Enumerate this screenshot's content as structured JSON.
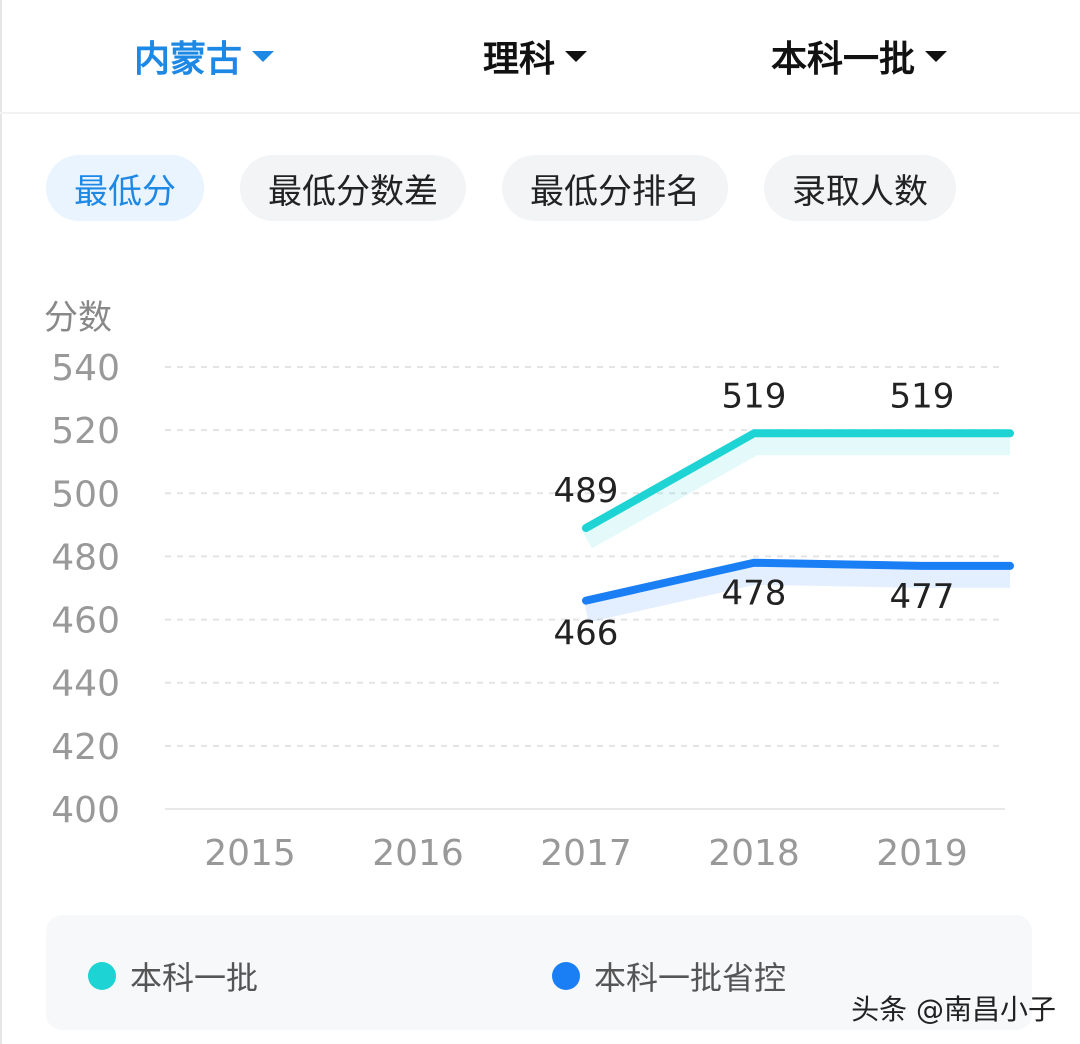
{
  "filters": [
    {
      "label": "内蒙古",
      "active": true
    },
    {
      "label": "理科",
      "active": false
    },
    {
      "label": "本科一批",
      "active": false
    }
  ],
  "tabs": [
    {
      "label": "最低分",
      "active": true
    },
    {
      "label": "最低分数差",
      "active": false
    },
    {
      "label": "最低分排名",
      "active": false
    },
    {
      "label": "录取人数",
      "active": false
    }
  ],
  "colors": {
    "accent": "#1e88e5",
    "series1": "#1dd3d3",
    "series2": "#1a7ff5"
  },
  "chart_data": {
    "type": "line",
    "ylabel": "分数",
    "ylim": [
      400,
      540
    ],
    "yticks": [
      "540",
      "520",
      "500",
      "480",
      "460",
      "440",
      "420",
      "400"
    ],
    "categories": [
      "2015",
      "2016",
      "2017",
      "2018",
      "2019"
    ],
    "grid": true,
    "legend_position": "bottom",
    "series": [
      {
        "name": "本科一批",
        "values": [
          null,
          null,
          489,
          519,
          519
        ],
        "labels": [
          "",
          "",
          "489",
          "519",
          "519"
        ]
      },
      {
        "name": "本科一批省控",
        "values": [
          null,
          null,
          466,
          478,
          477
        ],
        "labels": [
          "",
          "",
          "466",
          "478",
          "477"
        ]
      }
    ]
  },
  "watermark": "头条 @南昌小子"
}
